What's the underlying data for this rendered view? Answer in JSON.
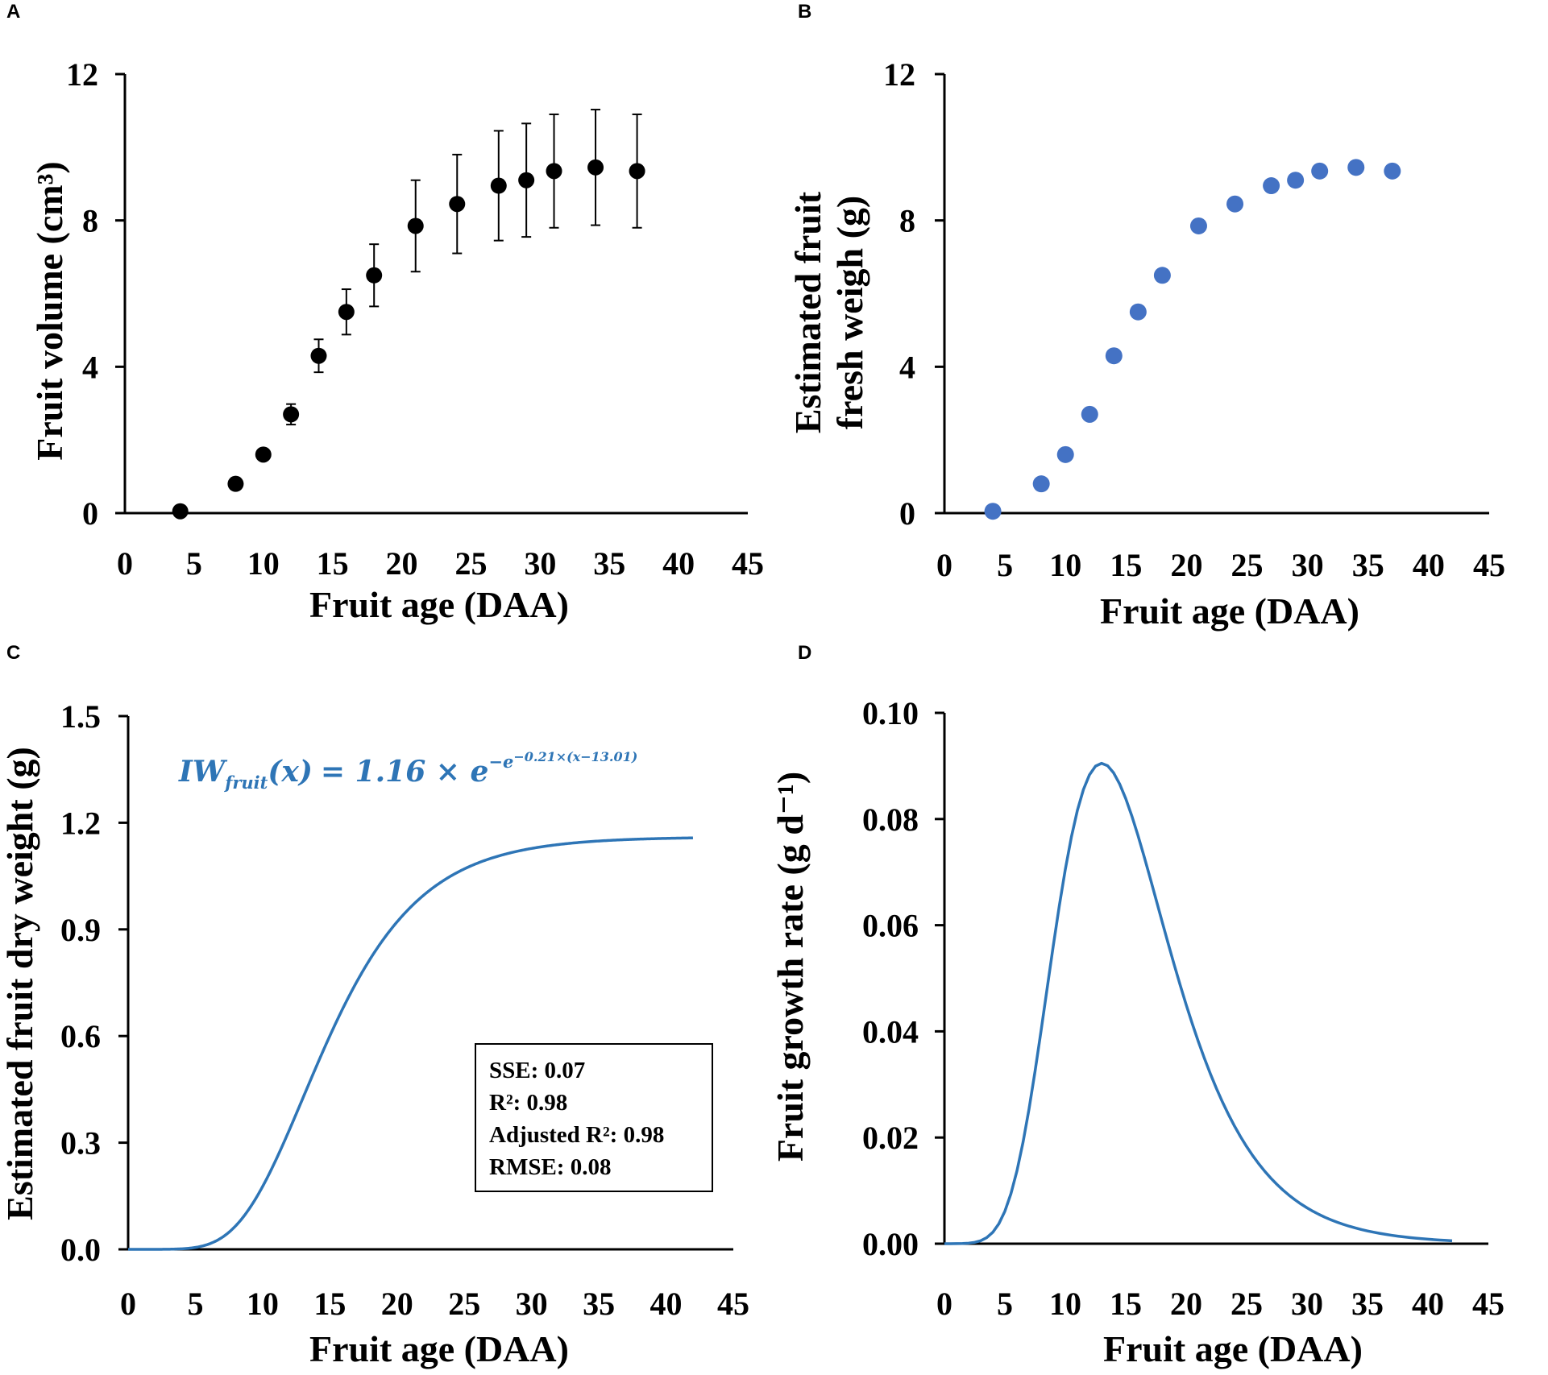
{
  "chart_data": [
    {
      "panel": "A",
      "type": "scatter",
      "title": "",
      "xlabel": "Fruit age (DAA)",
      "ylabel": "Fruit volume (cm³)",
      "xlim": [
        0,
        45
      ],
      "ylim": [
        0,
        12
      ],
      "xticks": [
        "0",
        "5",
        "10",
        "15",
        "20",
        "25",
        "30",
        "35",
        "40",
        "45"
      ],
      "yticks": [
        "0",
        "4",
        "8",
        "12"
      ],
      "marker_color": "#000000",
      "series": [
        {
          "name": "Fruit volume",
          "x": [
            4,
            8,
            10,
            12,
            14,
            16,
            18,
            21,
            24,
            27,
            29,
            31,
            34,
            37
          ],
          "y": [
            0.05,
            0.8,
            1.6,
            2.7,
            4.3,
            5.5,
            6.5,
            7.85,
            8.45,
            8.95,
            9.1,
            9.35,
            9.45,
            9.35
          ],
          "error": [
            0,
            0,
            0,
            0.28,
            0.45,
            0.62,
            0.85,
            1.25,
            1.35,
            1.5,
            1.55,
            1.55,
            1.58,
            1.55
          ]
        }
      ]
    },
    {
      "panel": "B",
      "type": "scatter",
      "title": "",
      "xlabel": "Fruit age (DAA)",
      "ylabel": [
        "Estimated fruit",
        "fresh weigh (g)"
      ],
      "xlim": [
        0,
        45
      ],
      "ylim": [
        0,
        12
      ],
      "xticks": [
        "0",
        "5",
        "10",
        "15",
        "20",
        "25",
        "30",
        "35",
        "40",
        "45"
      ],
      "yticks": [
        "0",
        "4",
        "8",
        "12"
      ],
      "marker_color": "#4472C4",
      "series": [
        {
          "name": "Estimated fruit fresh weight",
          "x": [
            4,
            8,
            10,
            12,
            14,
            16,
            18,
            21,
            24,
            27,
            29,
            31,
            34,
            37
          ],
          "y": [
            0.05,
            0.8,
            1.6,
            2.7,
            4.3,
            5.5,
            6.5,
            7.85,
            8.45,
            8.95,
            9.1,
            9.35,
            9.45,
            9.35
          ]
        }
      ]
    },
    {
      "panel": "C",
      "type": "line",
      "title": "",
      "xlabel": "Fruit age (DAA)",
      "ylabel": "Estimated fruit dry weight  (g)",
      "xlim": [
        0,
        45
      ],
      "ylim": [
        0,
        1.5
      ],
      "xticks": [
        "0",
        "5",
        "10",
        "15",
        "20",
        "25",
        "30",
        "35",
        "40",
        "45"
      ],
      "yticks": [
        "0.0",
        "0.3",
        "0.6",
        "0.9",
        "1.2",
        "1.5"
      ],
      "line_color": "#2E75B6",
      "model": {
        "a": 1.16,
        "b": 0.21,
        "c": 13.01,
        "x_range": [
          0,
          42
        ]
      },
      "equation": {
        "lhs_main": "IW",
        "lhs_sub": "fruit",
        "lhs_arg": "(x)",
        "rhs": "= 1.16 × e",
        "exp_e": "−e",
        "exp_exp": "−0.21×(x−13.01)"
      },
      "stats": [
        "SSE: 0.07",
        "R²: 0.98",
        "Adjusted R²: 0.98",
        "RMSE: 0.08"
      ]
    },
    {
      "panel": "D",
      "type": "line",
      "title": "",
      "xlabel": "Fruit age (DAA)",
      "ylabel": "Fruit growth rate (g d⁻¹)",
      "xlim": [
        0,
        45
      ],
      "ylim": [
        0,
        0.1
      ],
      "xticks": [
        "0",
        "5",
        "10",
        "15",
        "20",
        "25",
        "30",
        "35",
        "40",
        "45"
      ],
      "yticks": [
        "0.00",
        "0.02",
        "0.04",
        "0.06",
        "0.08",
        "0.10"
      ],
      "line_color": "#2E75B6",
      "model": {
        "a": 1.16,
        "b": 0.21,
        "c": 13.01,
        "x_range": [
          0,
          42
        ],
        "peak": {
          "x": 13,
          "y": 0.0905
        }
      }
    }
  ]
}
